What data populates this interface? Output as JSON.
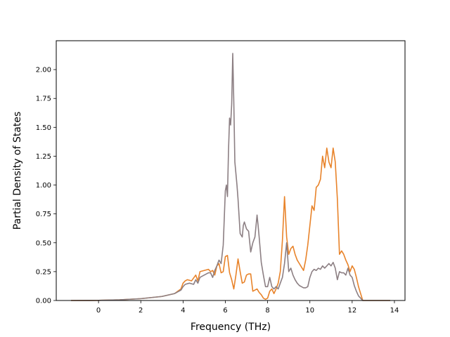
{
  "chart_data": {
    "type": "line",
    "title": "",
    "xlabel": "Frequency (THz)",
    "ylabel": "Partial Density of States",
    "xlim": [
      -2.0,
      14.5
    ],
    "ylim": [
      0.0,
      2.25
    ],
    "xticks": [
      0,
      2,
      4,
      6,
      8,
      10,
      12,
      14
    ],
    "yticks": [
      0.0,
      0.25,
      0.5,
      0.75,
      1.0,
      1.25,
      1.5,
      1.75,
      2.0
    ],
    "xtick_labels": [
      "0",
      "2",
      "4",
      "6",
      "8",
      "10",
      "12",
      "14"
    ],
    "ytick_labels": [
      "0.00",
      "0.25",
      "0.50",
      "0.75",
      "1.00",
      "1.25",
      "1.50",
      "1.75",
      "2.00"
    ],
    "grid": false,
    "legend": "none",
    "colors": {
      "series_1": "#e8832a",
      "series_2": "#8c7f83"
    },
    "series": [
      {
        "x": [
          -1.3,
          0.0,
          1.0,
          2.0,
          3.0,
          3.6,
          3.9,
          4.0,
          4.1,
          4.2,
          4.4,
          4.6,
          4.7,
          4.8,
          5.0,
          5.2,
          5.3,
          5.4,
          5.5,
          5.6,
          5.7,
          5.8,
          5.9,
          6.0,
          6.1,
          6.2,
          6.3,
          6.4,
          6.5,
          6.6,
          6.7,
          6.8,
          6.9,
          7.0,
          7.1,
          7.2,
          7.3,
          7.4,
          7.5,
          7.6,
          7.7,
          7.8,
          7.9,
          8.0,
          8.1,
          8.2,
          8.3,
          8.4,
          8.5,
          8.6,
          8.7,
          8.8,
          8.9,
          9.0,
          9.1,
          9.2,
          9.3,
          9.4,
          9.5,
          9.6,
          9.7,
          9.8,
          9.9,
          10.0,
          10.1,
          10.2,
          10.3,
          10.4,
          10.5,
          10.6,
          10.7,
          10.8,
          10.9,
          11.0,
          11.1,
          11.2,
          11.3,
          11.4,
          11.5,
          11.6,
          11.7,
          11.8,
          11.9,
          12.0,
          12.1,
          12.2,
          12.3,
          12.4,
          12.5,
          13.0,
          13.8
        ],
        "y": [
          0.0,
          0.001,
          0.006,
          0.016,
          0.035,
          0.06,
          0.1,
          0.15,
          0.17,
          0.18,
          0.17,
          0.22,
          0.17,
          0.25,
          0.26,
          0.27,
          0.25,
          0.26,
          0.22,
          0.3,
          0.32,
          0.24,
          0.25,
          0.38,
          0.39,
          0.24,
          0.18,
          0.1,
          0.22,
          0.36,
          0.25,
          0.15,
          0.16,
          0.22,
          0.23,
          0.23,
          0.08,
          0.09,
          0.1,
          0.07,
          0.05,
          0.02,
          0.01,
          0.02,
          0.08,
          0.1,
          0.06,
          0.1,
          0.15,
          0.25,
          0.52,
          0.9,
          0.55,
          0.4,
          0.45,
          0.47,
          0.4,
          0.35,
          0.32,
          0.29,
          0.26,
          0.35,
          0.48,
          0.65,
          0.82,
          0.78,
          0.98,
          1.0,
          1.05,
          1.25,
          1.15,
          1.32,
          1.2,
          1.15,
          1.32,
          1.2,
          0.88,
          0.4,
          0.43,
          0.4,
          0.35,
          0.31,
          0.25,
          0.3,
          0.27,
          0.2,
          0.12,
          0.06,
          0.0,
          0.0,
          0.0
        ]
      },
      {
        "x": [
          -1.3,
          0.0,
          1.0,
          2.0,
          3.0,
          3.6,
          3.9,
          4.0,
          4.1,
          4.3,
          4.5,
          4.6,
          4.7,
          4.8,
          5.0,
          5.2,
          5.3,
          5.4,
          5.5,
          5.6,
          5.7,
          5.8,
          5.9,
          6.0,
          6.05,
          6.1,
          6.15,
          6.2,
          6.25,
          6.3,
          6.35,
          6.4,
          6.45,
          6.5,
          6.55,
          6.6,
          6.7,
          6.8,
          6.85,
          6.9,
          7.0,
          7.1,
          7.2,
          7.3,
          7.4,
          7.5,
          7.55,
          7.6,
          7.7,
          7.8,
          7.9,
          8.0,
          8.1,
          8.2,
          8.3,
          8.4,
          8.5,
          8.6,
          8.7,
          8.8,
          8.9,
          9.0,
          9.1,
          9.2,
          9.3,
          9.4,
          9.5,
          9.6,
          9.7,
          9.8,
          9.9,
          10.0,
          10.1,
          10.2,
          10.3,
          10.4,
          10.5,
          10.6,
          10.7,
          10.8,
          10.9,
          11.0,
          11.1,
          11.2,
          11.3,
          11.4,
          11.5,
          11.6,
          11.7,
          11.8,
          11.9,
          12.0,
          12.1,
          12.2,
          12.3,
          12.4,
          12.5,
          13.0,
          13.8
        ],
        "y": [
          0.0,
          0.001,
          0.006,
          0.016,
          0.035,
          0.06,
          0.09,
          0.12,
          0.14,
          0.15,
          0.14,
          0.18,
          0.15,
          0.2,
          0.22,
          0.24,
          0.24,
          0.2,
          0.26,
          0.3,
          0.35,
          0.32,
          0.48,
          0.95,
          1.0,
          0.9,
          1.3,
          1.58,
          1.52,
          1.7,
          2.14,
          1.72,
          1.2,
          1.1,
          1.0,
          0.88,
          0.58,
          0.55,
          0.65,
          0.68,
          0.62,
          0.6,
          0.42,
          0.5,
          0.55,
          0.74,
          0.65,
          0.55,
          0.33,
          0.22,
          0.12,
          0.12,
          0.2,
          0.12,
          0.1,
          0.12,
          0.1,
          0.15,
          0.2,
          0.32,
          0.5,
          0.25,
          0.28,
          0.22,
          0.18,
          0.15,
          0.13,
          0.12,
          0.11,
          0.11,
          0.12,
          0.2,
          0.25,
          0.27,
          0.26,
          0.28,
          0.27,
          0.3,
          0.28,
          0.3,
          0.32,
          0.3,
          0.33,
          0.28,
          0.18,
          0.25,
          0.24,
          0.24,
          0.22,
          0.28,
          0.22,
          0.2,
          0.13,
          0.08,
          0.04,
          0.02,
          0.0,
          0.0,
          0.0
        ]
      }
    ]
  }
}
